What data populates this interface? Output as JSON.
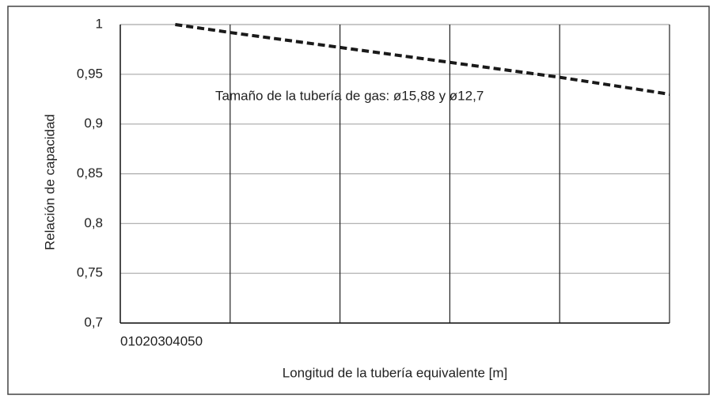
{
  "chart_data": {
    "type": "line",
    "annotation": "Tamaño de la tubería de gas: ø15,88 y ø12,7",
    "xlabel": "Longitud de la tubería equivalente [m]",
    "ylabel": "Relación de capacidad",
    "x": [
      5,
      10,
      20,
      30,
      40,
      50
    ],
    "series": [
      {
        "color": "#1a1a1a",
        "values": [
          1.0,
          0.992,
          0.977,
          0.962,
          0.947,
          0.93
        ]
      }
    ],
    "xlim": [
      0,
      50
    ],
    "xticks": [
      0,
      10,
      20,
      30,
      40,
      50
    ],
    "ylim": [
      0.7,
      1
    ],
    "yticks": [
      {
        "value": 0.7,
        "label": "0,7"
      },
      {
        "value": 0.75,
        "label": "0,75"
      },
      {
        "value": 0.8,
        "label": "0,8"
      },
      {
        "value": 0.85,
        "label": "0,85"
      },
      {
        "value": 0.9,
        "label": "0,9"
      },
      {
        "value": 0.95,
        "label": "0,95"
      },
      1
    ],
    "grid": true
  }
}
